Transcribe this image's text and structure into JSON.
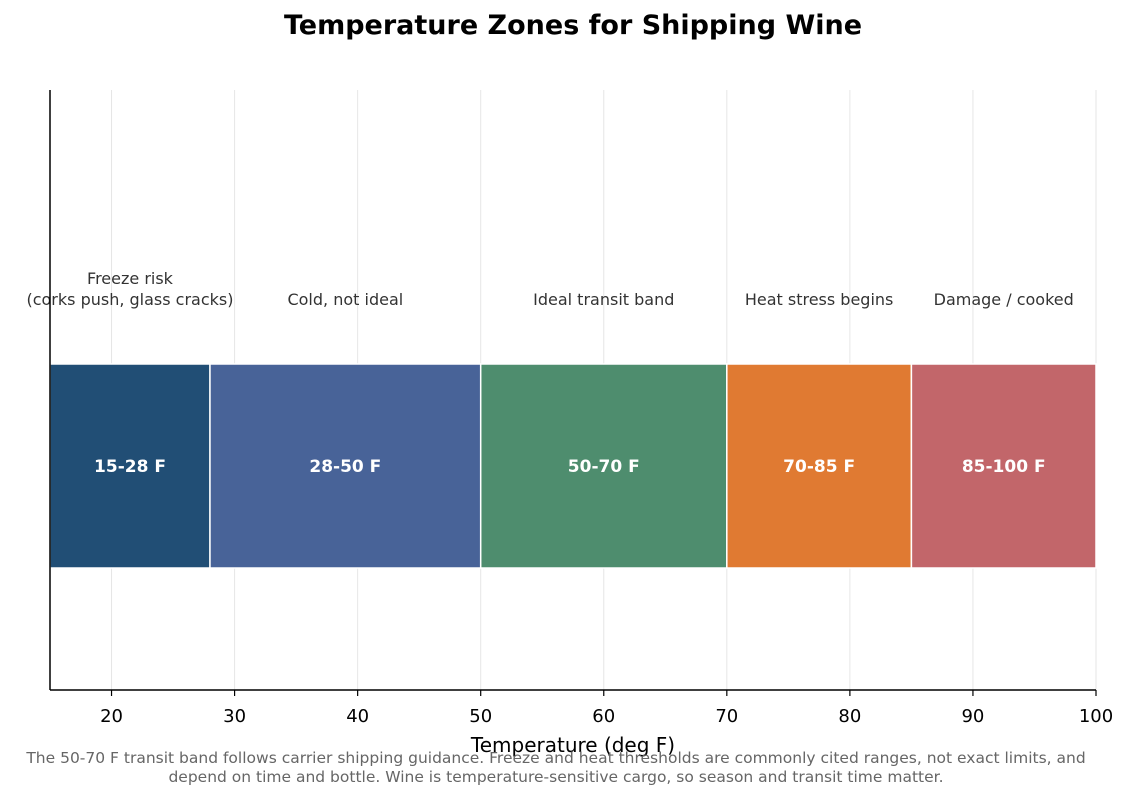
{
  "chart_data": {
    "type": "bar",
    "orientation": "horizontal-stacked-ranges",
    "title": "Temperature Zones for Shipping Wine",
    "xlabel": "Temperature (deg F)",
    "ylabel": "",
    "xlim": [
      15,
      100
    ],
    "xticks": [
      20,
      30,
      40,
      50,
      60,
      70,
      80,
      90,
      100
    ],
    "grid": "vertical",
    "zones": [
      {
        "start": 15,
        "end": 28,
        "range_label": "15-28 F",
        "description": [
          "Freeze risk",
          "(corks push, glass cracks)"
        ],
        "color": "#214e75"
      },
      {
        "start": 28,
        "end": 50,
        "range_label": "28-50 F",
        "description": [
          "Cold, not ideal"
        ],
        "color": "#486398"
      },
      {
        "start": 50,
        "end": 70,
        "range_label": "50-70 F",
        "description": [
          "Ideal transit band"
        ],
        "color": "#4e8d6e"
      },
      {
        "start": 70,
        "end": 85,
        "range_label": "70-85 F",
        "description": [
          "Heat stress begins"
        ],
        "color": "#e07a32"
      },
      {
        "start": 85,
        "end": 100,
        "range_label": "85-100 F",
        "description": [
          "Damage / cooked"
        ],
        "color": "#c2666a"
      }
    ]
  },
  "footnote": "The 50-70 F transit band follows carrier shipping guidance. Freeze and heat thresholds are commonly cited ranges, not exact limits, and depend on time and bottle. Wine is temperature-sensitive cargo, so season and transit time matter."
}
